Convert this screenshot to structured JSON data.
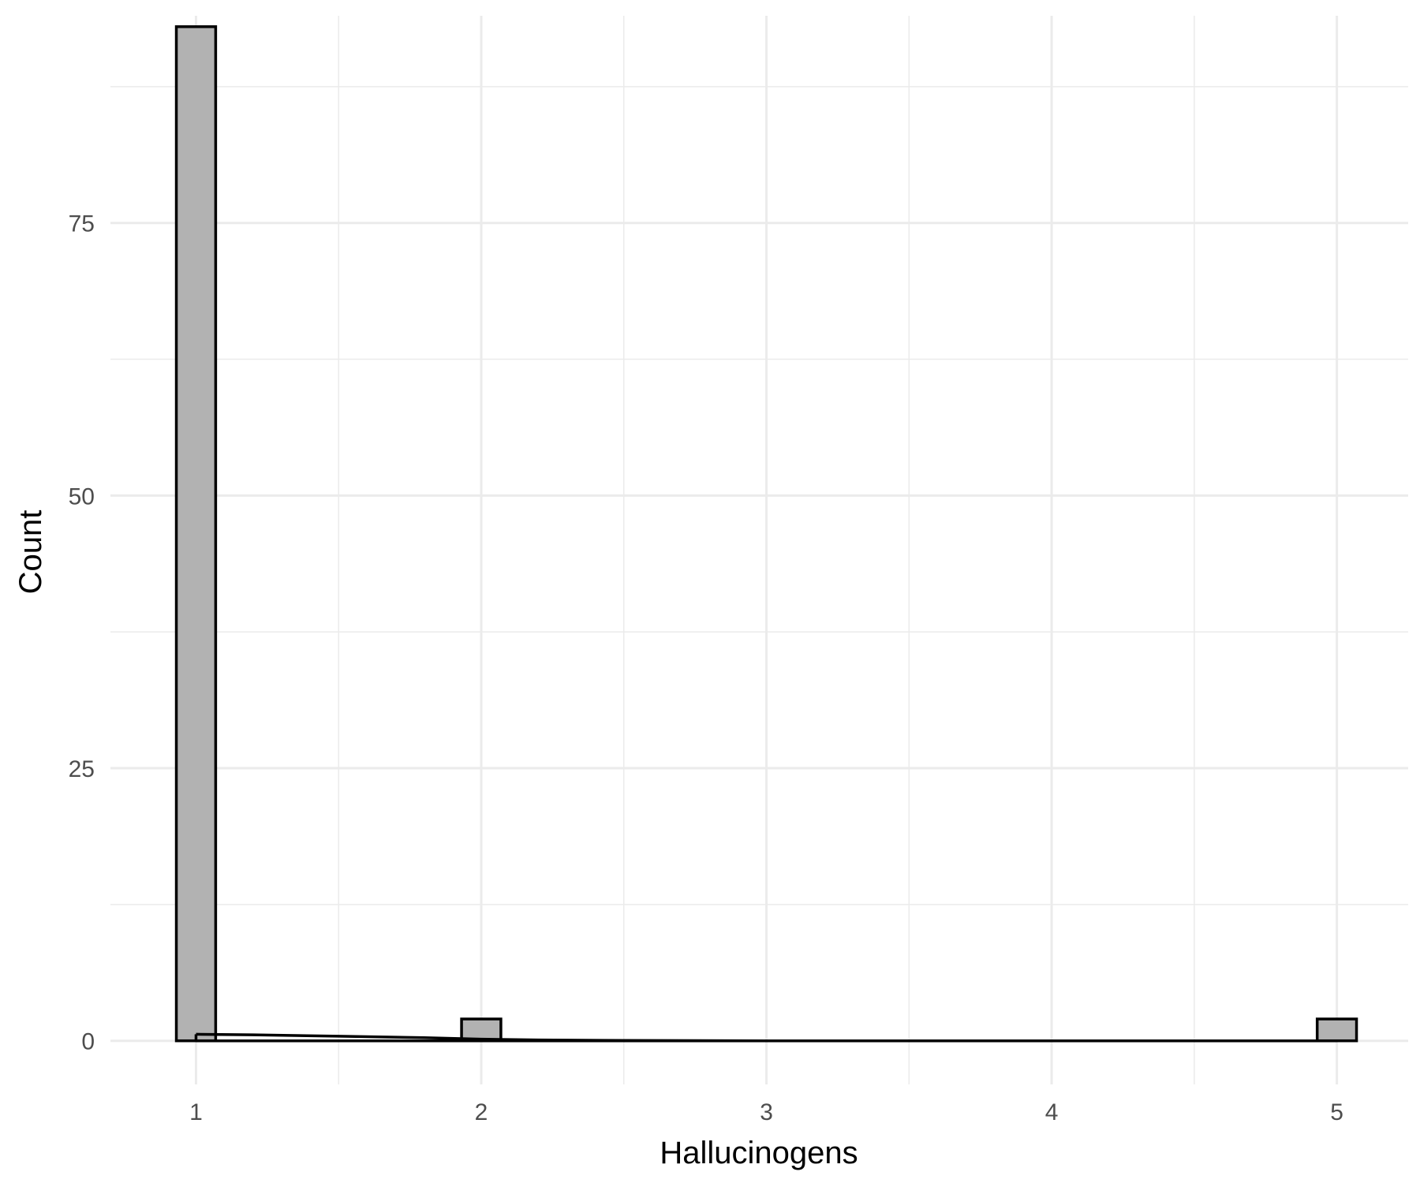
{
  "chart_data": {
    "type": "bar",
    "subtype": "histogram-with-density",
    "xlabel": "Hallucinogens",
    "ylabel": "Count",
    "xlim": [
      0.7,
      5.25
    ],
    "ylim": [
      -4,
      94
    ],
    "x_ticks": [
      1,
      2,
      3,
      4,
      5
    ],
    "x_minor_ticks": [
      1.5,
      2.5,
      3.5,
      4.5
    ],
    "y_ticks": [
      0,
      25,
      50,
      75
    ],
    "y_minor_ticks": [
      12.5,
      37.5,
      62.5,
      87.5
    ],
    "bin_width": 0.1379,
    "bars": [
      {
        "x": 1,
        "count": 93
      },
      {
        "x": 2,
        "count": 2
      },
      {
        "x": 5,
        "count": 2
      }
    ],
    "density_line": {
      "x": [
        1.0,
        1.2,
        1.5,
        1.8,
        2.0,
        2.2,
        2.5,
        3.0,
        4.0,
        5.0
      ],
      "y": [
        0.6,
        0.55,
        0.42,
        0.28,
        0.15,
        0.08,
        0.03,
        0.0,
        0.0,
        0.0
      ]
    },
    "grid": true,
    "legend": "none",
    "colors": {
      "bar_fill": "#b2b2b2",
      "bar_stroke": "#000000",
      "grid": "#ebebeb",
      "line": "#000000"
    }
  }
}
